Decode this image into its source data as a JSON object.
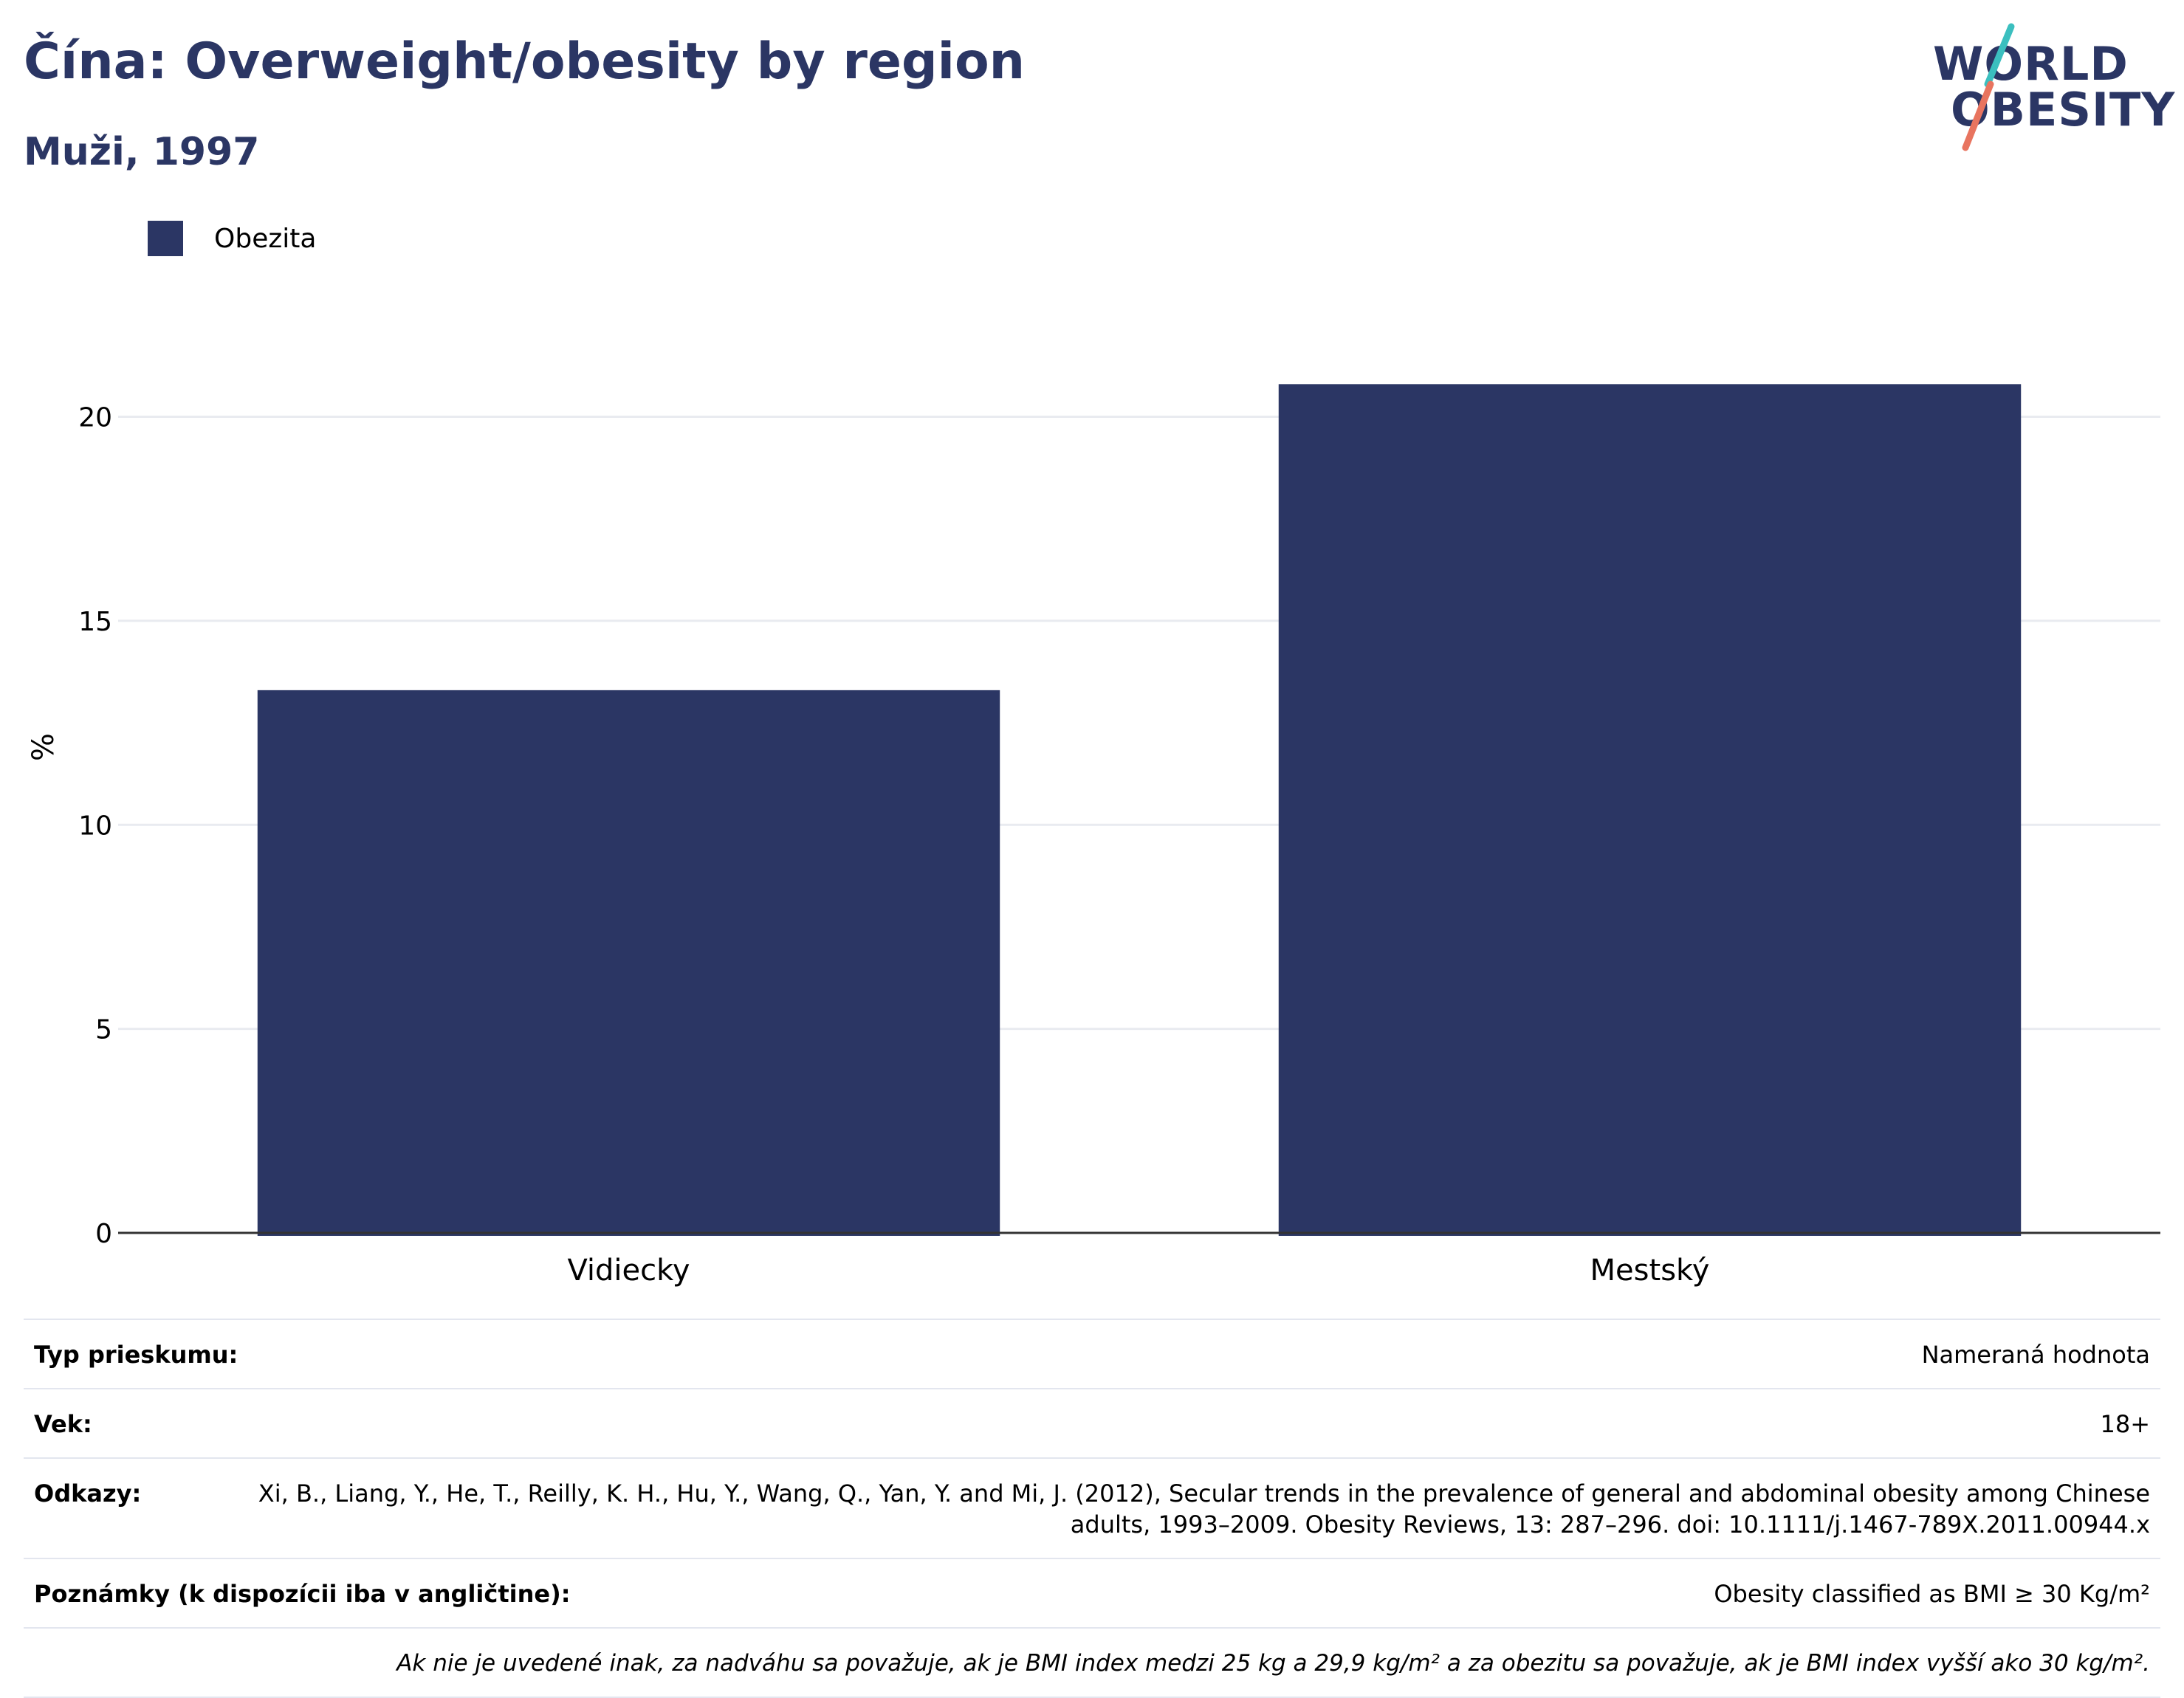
{
  "header": {
    "title": "Čína: Overweight/obesity by region",
    "subtitle": "Muži, 1997"
  },
  "logo": {
    "line1": "WORLD",
    "line2": "OBESITY",
    "colors": {
      "text": "#2b3664",
      "slash_top": "#3bbfbf",
      "slash_bottom": "#e8745f"
    }
  },
  "colors": {
    "bar": "#2b3664",
    "title": "#2b3664",
    "grid": "#e9ebf0",
    "axis": "#333333"
  },
  "chart_data": {
    "type": "bar",
    "title": "Čína: Overweight/obesity by region",
    "subtitle": "Muži, 1997",
    "categories": [
      "Vidiecky",
      "Mestský"
    ],
    "series": [
      {
        "name": "Obezita",
        "values": [
          13.3,
          20.8
        ],
        "color": "#2b3664"
      }
    ],
    "ylabel": "%",
    "xlabel": "",
    "ylim": [
      0,
      22
    ],
    "yticks": [
      0,
      5,
      10,
      15,
      20
    ],
    "grid": true,
    "legend": "top-left"
  },
  "info": {
    "rows": [
      {
        "key": "Typ prieskumu:",
        "value": "Nameraná hodnota"
      },
      {
        "key": "Vek:",
        "value": "18+"
      },
      {
        "key": "Odkazy:",
        "value": "Xi, B., Liang, Y., He, T., Reilly, K. H., Hu, Y., Wang, Q., Yan, Y. and Mi, J. (2012), Secular trends in the prevalence of general and abdominal obesity among Chinese adults, 1993–2009. Obesity Reviews, 13: 287–296. doi: 10.1111/j.1467-789X.2011.00944.x"
      },
      {
        "key": "Poznámky (k dispozícii iba v angličtine):",
        "value": "Obesity classified as BMI ≥ 30 Kg/m²"
      }
    ],
    "note": "Ak nie je uvedené inak, za nadváhu sa považuje, ak je BMI index medzi 25 kg a 29,9 kg/m² a za obezitu sa považuje, ak je BMI index vyšší ako 30 kg/m²."
  }
}
